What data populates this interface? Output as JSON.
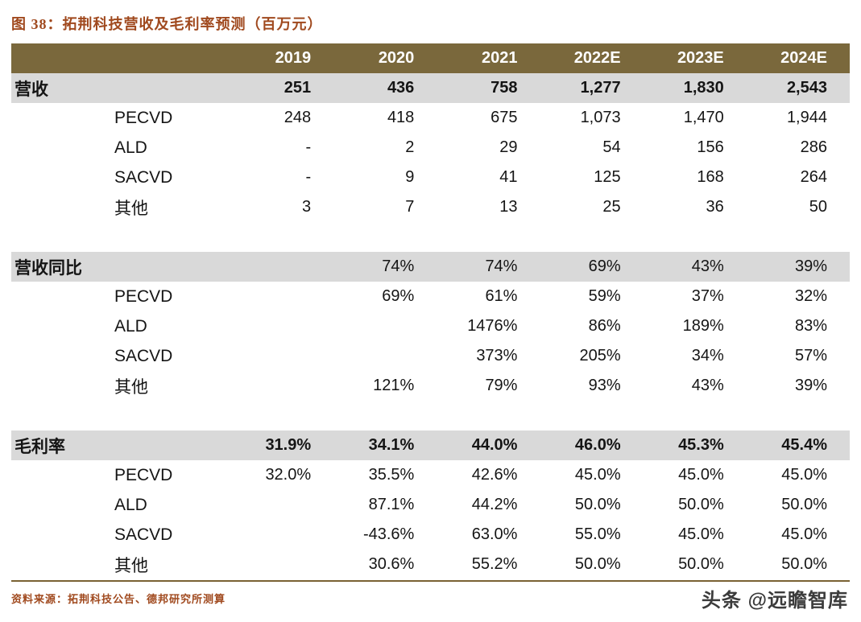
{
  "page": {
    "title": "图 38：拓荆科技营收及毛利率预测（百万元）",
    "source": "资料来源：拓荆科技公告、德邦研究所测算",
    "watermark": "头条 @远瞻智库"
  },
  "colors": {
    "accent": "#A0491E",
    "header_bg": "#7A683C",
    "header_text": "#FFFFFF",
    "row_shade": "#D9D9D9",
    "divider": "#7A6233",
    "watermark": "#3B3B3B"
  },
  "chart_data": {
    "type": "table",
    "title": "图 38：拓荆科技营收及毛利率预测（百万元）",
    "unit": "百万元",
    "columns": [
      "2019",
      "2020",
      "2021",
      "2022E",
      "2023E",
      "2024E"
    ],
    "rows": [
      {
        "label": "营收",
        "shaded": true,
        "bold": true,
        "indent": false,
        "spacer": false,
        "values": [
          "251",
          "436",
          "758",
          "1,277",
          "1,830",
          "2,543"
        ]
      },
      {
        "label": "PECVD",
        "shaded": false,
        "bold": false,
        "indent": true,
        "spacer": false,
        "values": [
          "248",
          "418",
          "675",
          "1,073",
          "1,470",
          "1,944"
        ]
      },
      {
        "label": "ALD",
        "shaded": false,
        "bold": false,
        "indent": true,
        "spacer": false,
        "values": [
          "-",
          "2",
          "29",
          "54",
          "156",
          "286"
        ]
      },
      {
        "label": "SACVD",
        "shaded": false,
        "bold": false,
        "indent": true,
        "spacer": false,
        "values": [
          "-",
          "9",
          "41",
          "125",
          "168",
          "264"
        ]
      },
      {
        "label": "其他",
        "shaded": false,
        "bold": false,
        "indent": true,
        "spacer": false,
        "values": [
          "3",
          "7",
          "13",
          "25",
          "36",
          "50"
        ]
      },
      {
        "label": "",
        "shaded": false,
        "bold": false,
        "indent": false,
        "spacer": true,
        "values": [
          "",
          "",
          "",
          "",
          "",
          ""
        ]
      },
      {
        "label": "营收同比",
        "shaded": true,
        "bold": false,
        "indent": false,
        "spacer": false,
        "values": [
          "",
          "74%",
          "74%",
          "69%",
          "43%",
          "39%"
        ]
      },
      {
        "label": "PECVD",
        "shaded": false,
        "bold": false,
        "indent": true,
        "spacer": false,
        "values": [
          "",
          "69%",
          "61%",
          "59%",
          "37%",
          "32%"
        ]
      },
      {
        "label": "ALD",
        "shaded": false,
        "bold": false,
        "indent": true,
        "spacer": false,
        "values": [
          "",
          "",
          "1476%",
          "86%",
          "189%",
          "83%"
        ]
      },
      {
        "label": "SACVD",
        "shaded": false,
        "bold": false,
        "indent": true,
        "spacer": false,
        "values": [
          "",
          "",
          "373%",
          "205%",
          "34%",
          "57%"
        ]
      },
      {
        "label": "其他",
        "shaded": false,
        "bold": false,
        "indent": true,
        "spacer": false,
        "values": [
          "",
          "121%",
          "79%",
          "93%",
          "43%",
          "39%"
        ]
      },
      {
        "label": "",
        "shaded": false,
        "bold": false,
        "indent": false,
        "spacer": true,
        "values": [
          "",
          "",
          "",
          "",
          "",
          ""
        ]
      },
      {
        "label": "毛利率",
        "shaded": true,
        "bold": true,
        "indent": false,
        "spacer": false,
        "values": [
          "31.9%",
          "34.1%",
          "44.0%",
          "46.0%",
          "45.3%",
          "45.4%"
        ]
      },
      {
        "label": "PECVD",
        "shaded": false,
        "bold": false,
        "indent": true,
        "spacer": false,
        "values": [
          "32.0%",
          "35.5%",
          "42.6%",
          "45.0%",
          "45.0%",
          "45.0%"
        ]
      },
      {
        "label": "ALD",
        "shaded": false,
        "bold": false,
        "indent": true,
        "spacer": false,
        "values": [
          "",
          "87.1%",
          "44.2%",
          "50.0%",
          "50.0%",
          "50.0%"
        ]
      },
      {
        "label": "SACVD",
        "shaded": false,
        "bold": false,
        "indent": true,
        "spacer": false,
        "values": [
          "",
          "-43.6%",
          "63.0%",
          "55.0%",
          "45.0%",
          "45.0%"
        ]
      },
      {
        "label": "其他",
        "shaded": false,
        "bold": false,
        "indent": true,
        "spacer": false,
        "values": [
          "",
          "30.6%",
          "55.2%",
          "50.0%",
          "50.0%",
          "50.0%"
        ]
      }
    ]
  }
}
